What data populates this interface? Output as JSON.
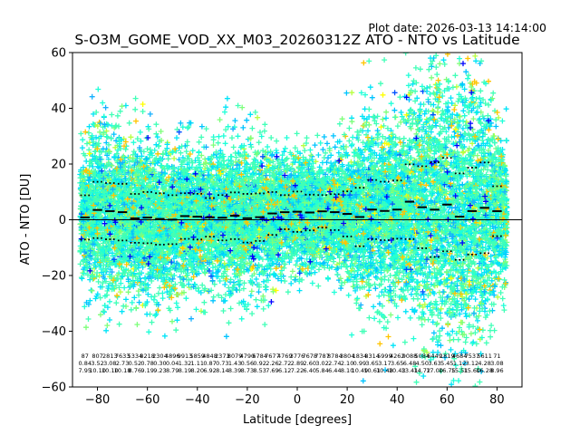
{
  "chart_data": {
    "type": "scatter",
    "plot_date": "Plot date: 2026-03-13 14:14:00",
    "title": "S-O3M_GOME_VOD_XX_M03_20260312Z ATO - NTO vs Latitude",
    "xlabel": "Latitude [degrees]",
    "ylabel": "ATO - NTO [DU]",
    "xlim": [
      -90,
      90
    ],
    "ylim": [
      -60,
      60
    ],
    "x_ticks": [
      -80,
      -60,
      -40,
      -20,
      0,
      20,
      40,
      60,
      80
    ],
    "y_ticks": [
      -60,
      -40,
      -20,
      0,
      20,
      40,
      60
    ],
    "zero_line": 0,
    "marker": "+",
    "colors": [
      "#40ffb7",
      "#1fffd8",
      "#00e4f8",
      "#00c4ff",
      "#15b0ff",
      "#7dff7a",
      "#b7ff40",
      "#ffff00",
      "#ffc400",
      "#ff9f00",
      "#0000ff",
      "#0050ff",
      "#1010ee"
    ],
    "line_color": "#000000",
    "bin_centers": [
      -85,
      -80,
      -75,
      -70,
      -65,
      -60,
      -55,
      -50,
      -45,
      -40,
      -35,
      -30,
      -25,
      -20,
      -15,
      -10,
      -5,
      0,
      5,
      10,
      15,
      20,
      25,
      30,
      35,
      40,
      45,
      50,
      55,
      60,
      65,
      70,
      75,
      80
    ],
    "counts": [
      "87",
      "807",
      "2813",
      "7633",
      "5334",
      "8218",
      "2304",
      "4896",
      "9913",
      "5859",
      "4848",
      "2373",
      "8079",
      "4790",
      "6784",
      "7677",
      "4769",
      "3776",
      "7678",
      "7787",
      "8784",
      "3804",
      "1834",
      "8314",
      "5999",
      "4262",
      "9088",
      "5084",
      "6449",
      "1819",
      "4684",
      "7537",
      "5611",
      "71"
    ],
    "mean": [
      0.84,
      3.52,
      3.08,
      2.73,
      0.52,
      0.78,
      0.3,
      0.04,
      1.32,
      1.11,
      0.87,
      0.73,
      1.43,
      0.56,
      0.92,
      2.26,
      2.72,
      2.89,
      2.6,
      3.02,
      2.74,
      2.1,
      0.99,
      3.65,
      3.17,
      3.65,
      6.48,
      4.5,
      3.63,
      5.45,
      1.12,
      3.12,
      4.28,
      3.08
    ],
    "std": [
      7.95,
      10.1,
      10.1,
      10.18,
      8.76,
      9.19,
      9.23,
      8.79,
      8.19,
      8.2,
      6.92,
      8.14,
      8.39,
      8.73,
      8.53,
      7.69,
      6.12,
      7.22,
      6.4,
      5.84,
      6.44,
      8.1,
      10.49,
      10.61,
      10.48,
      10.43,
      13.41,
      14.72,
      17.0,
      16.75,
      15.51,
      15.6,
      16.28,
      8.96
    ],
    "stats_rows": [
      "87 807 2813 7633 5334 8218 2304 4896 9913 5859 4848 2373 8079 4790 6784 7677 4769 3776 7678 7787 8784 3804 1834 8314 5999 4262 9088 5084 6449 1819 4684 7537 5611 71",
      "0.84 3.52 3.08 2.73 0.52 0.78 0.30 0.04 1.32 1.11 0.87 0.73 1.43 0.56 0.92 2.26 2.72 2.89 2.60 3.02 2.74 2.10 0.99 3.65 3.17 3.65 6.48 4.50 3.63 5.45 1.12 3.12 4.28 3.08",
      "7.95 10.10 10.10 10.18 8.76 9.19 9.23 8.79 8.19 8.20 6.92 8.14 8.39 8.73 8.53 7.69 6.12 7.22 6.40 5.84 6.44 8.10 10.49 10.61 10.48 10.43 13.41 14.72 17.00 16.75 15.51 15.60 16.28 8.96"
    ]
  }
}
